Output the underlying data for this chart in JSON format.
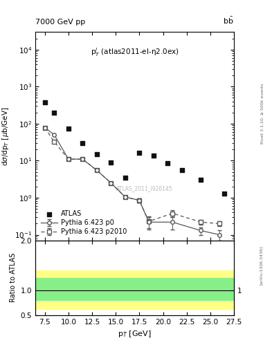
{
  "title_top": "7000 GeV pp",
  "title_top_right": "b$\\bar{\\rm b}$",
  "plot_annotation": "p$_T^l$ (atlas2011-el-η2.0ex)",
  "watermark": "ATLAS_2011_I926145",
  "right_label1": "Rivet 3.1.10, ≥ 500k events",
  "right_label2": "[arXiv:1306.3436]",
  "xlabel": "p$_T$ [GeV]",
  "ylabel": "dσ/dp$_T$ [μb/GeV]",
  "ylabel_ratio": "Ratio to ATLAS",
  "xlim": [
    6.5,
    27.5
  ],
  "ylim_log": [
    0.07,
    30000
  ],
  "ylim_ratio": [
    0.5,
    2.0
  ],
  "atlas_x": [
    7.5,
    8.5,
    10.0,
    11.5,
    13.0,
    14.5,
    16.0,
    17.5,
    19.0,
    20.5,
    22.0,
    24.0,
    26.5
  ],
  "atlas_y": [
    380,
    200,
    72,
    30,
    15,
    9,
    3.5,
    16,
    14,
    8.5,
    5.5,
    3.0,
    1.3
  ],
  "p0_x": [
    7.5,
    8.5,
    10.0,
    11.5,
    13.0,
    14.5,
    16.0,
    17.5,
    18.5,
    21.0,
    24.0,
    26.0
  ],
  "p0_y": [
    78,
    50,
    11,
    11,
    5.5,
    2.5,
    1.05,
    0.85,
    0.22,
    0.22,
    0.13,
    0.1
  ],
  "p0_yerr": [
    0,
    0,
    0,
    0,
    0,
    0.15,
    0.1,
    0.1,
    0.08,
    0.08,
    0.03,
    0.03
  ],
  "p2010_x": [
    7.5,
    8.5,
    10.0,
    11.5,
    13.0,
    14.5,
    16.0,
    17.5,
    18.5,
    21.0,
    24.0,
    26.0
  ],
  "p2010_y": [
    78,
    32,
    11,
    11,
    5.5,
    2.5,
    1.05,
    0.85,
    0.23,
    0.38,
    0.22,
    0.2
  ],
  "p2010_yerr": [
    0,
    0,
    0,
    0,
    0,
    0.15,
    0.1,
    0.1,
    0.08,
    0.08,
    0.03,
    0.03
  ],
  "atlas_color": "#111111",
  "mc_color": "#555555",
  "green_lower": 0.8,
  "green_upper": 1.25,
  "yellow_lower": 0.62,
  "yellow_upper": 1.4,
  "ratio_yticks": [
    0.5,
    1.0,
    2.0
  ]
}
